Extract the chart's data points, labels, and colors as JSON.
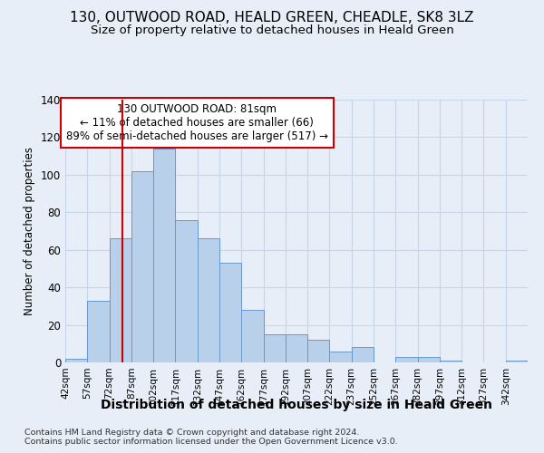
{
  "title_line1": "130, OUTWOOD ROAD, HEALD GREEN, CHEADLE, SK8 3LZ",
  "title_line2": "Size of property relative to detached houses in Heald Green",
  "xlabel": "Distribution of detached houses by size in Heald Green",
  "ylabel": "Number of detached properties",
  "footnote_line1": "Contains HM Land Registry data © Crown copyright and database right 2024.",
  "footnote_line2": "Contains public sector information licensed under the Open Government Licence v3.0.",
  "bin_labels": [
    "42sqm",
    "57sqm",
    "72sqm",
    "87sqm",
    "102sqm",
    "117sqm",
    "132sqm",
    "147sqm",
    "162sqm",
    "177sqm",
    "192sqm",
    "207sqm",
    "222sqm",
    "237sqm",
    "252sqm",
    "267sqm",
    "282sqm",
    "297sqm",
    "312sqm",
    "327sqm",
    "342sqm"
  ],
  "bin_edges": [
    42,
    57,
    72,
    87,
    102,
    117,
    132,
    147,
    162,
    177,
    192,
    207,
    222,
    237,
    252,
    267,
    282,
    297,
    312,
    327,
    342
  ],
  "bar_heights": [
    2,
    33,
    66,
    102,
    114,
    76,
    66,
    53,
    28,
    15,
    15,
    12,
    6,
    8,
    0,
    3,
    3,
    1,
    0,
    0,
    1
  ],
  "bar_color": "#b8d0ea",
  "bar_edge_color": "#6699cc",
  "grid_color": "#c8d4e8",
  "background_color": "#e8eef8",
  "property_size": 81,
  "vline_color": "#cc0000",
  "annotation_text": "130 OUTWOOD ROAD: 81sqm\n← 11% of detached houses are smaller (66)\n89% of semi-detached houses are larger (517) →",
  "annotation_box_color": "#ffffff",
  "annotation_box_edge": "#cc0000",
  "ylim": [
    0,
    140
  ],
  "yticks": [
    0,
    20,
    40,
    60,
    80,
    100,
    120,
    140
  ],
  "title_fontsize": 11,
  "subtitle_fontsize": 9.5,
  "ylabel_fontsize": 8.5,
  "xlabel_fontsize": 10,
  "tick_fontsize": 7.5,
  "annot_fontsize": 8.5,
  "footnote_fontsize": 6.8
}
